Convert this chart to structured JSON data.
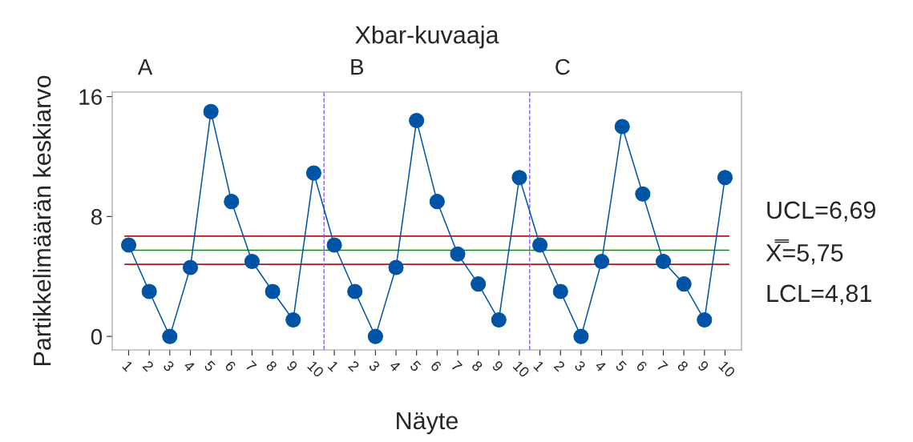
{
  "chart_data": {
    "type": "line",
    "title": "Xbar-kuvaaja",
    "xlabel": "Näyte",
    "ylabel": "Partikkelimäärän keskiarvo",
    "categories": [
      "1",
      "2",
      "3",
      "4",
      "5",
      "6",
      "7",
      "8",
      "9",
      "10",
      "1",
      "2",
      "3",
      "4",
      "5",
      "6",
      "7",
      "8",
      "9",
      "10",
      "1",
      "2",
      "3",
      "4",
      "5",
      "6",
      "7",
      "8",
      "9",
      "10"
    ],
    "series": [
      {
        "color": "#0054a6",
        "values": [
          6.1,
          3.0,
          0,
          4.6,
          15.0,
          9.0,
          5.0,
          3.0,
          1.1,
          10.9,
          6.1,
          3.0,
          0,
          4.6,
          14.4,
          9.0,
          5.5,
          3.5,
          1.1,
          10.6,
          6.1,
          3.0,
          0,
          5.0,
          14.0,
          9.5,
          5.0,
          3.5,
          1.1,
          10.6
        ]
      }
    ],
    "marker": "circle",
    "line_style": "solid",
    "ylim": [
      -0.9,
      16.3
    ],
    "yticks": [
      0,
      8,
      16
    ],
    "grid": false,
    "ref_lines": [
      {
        "axis": "y",
        "value": 6.69,
        "label": "UCL=6,69",
        "color": "#a31d1d",
        "line_style": "solid"
      },
      {
        "axis": "y",
        "value": 5.75,
        "label": "X̿=5,75",
        "color": "#1e7b1e",
        "line_style": "solid"
      },
      {
        "axis": "y",
        "value": 4.81,
        "label": "LCL=4,81",
        "color": "#a31d1d",
        "line_style": "solid"
      }
    ],
    "annotations": [
      "A",
      "B",
      "C"
    ]
  }
}
